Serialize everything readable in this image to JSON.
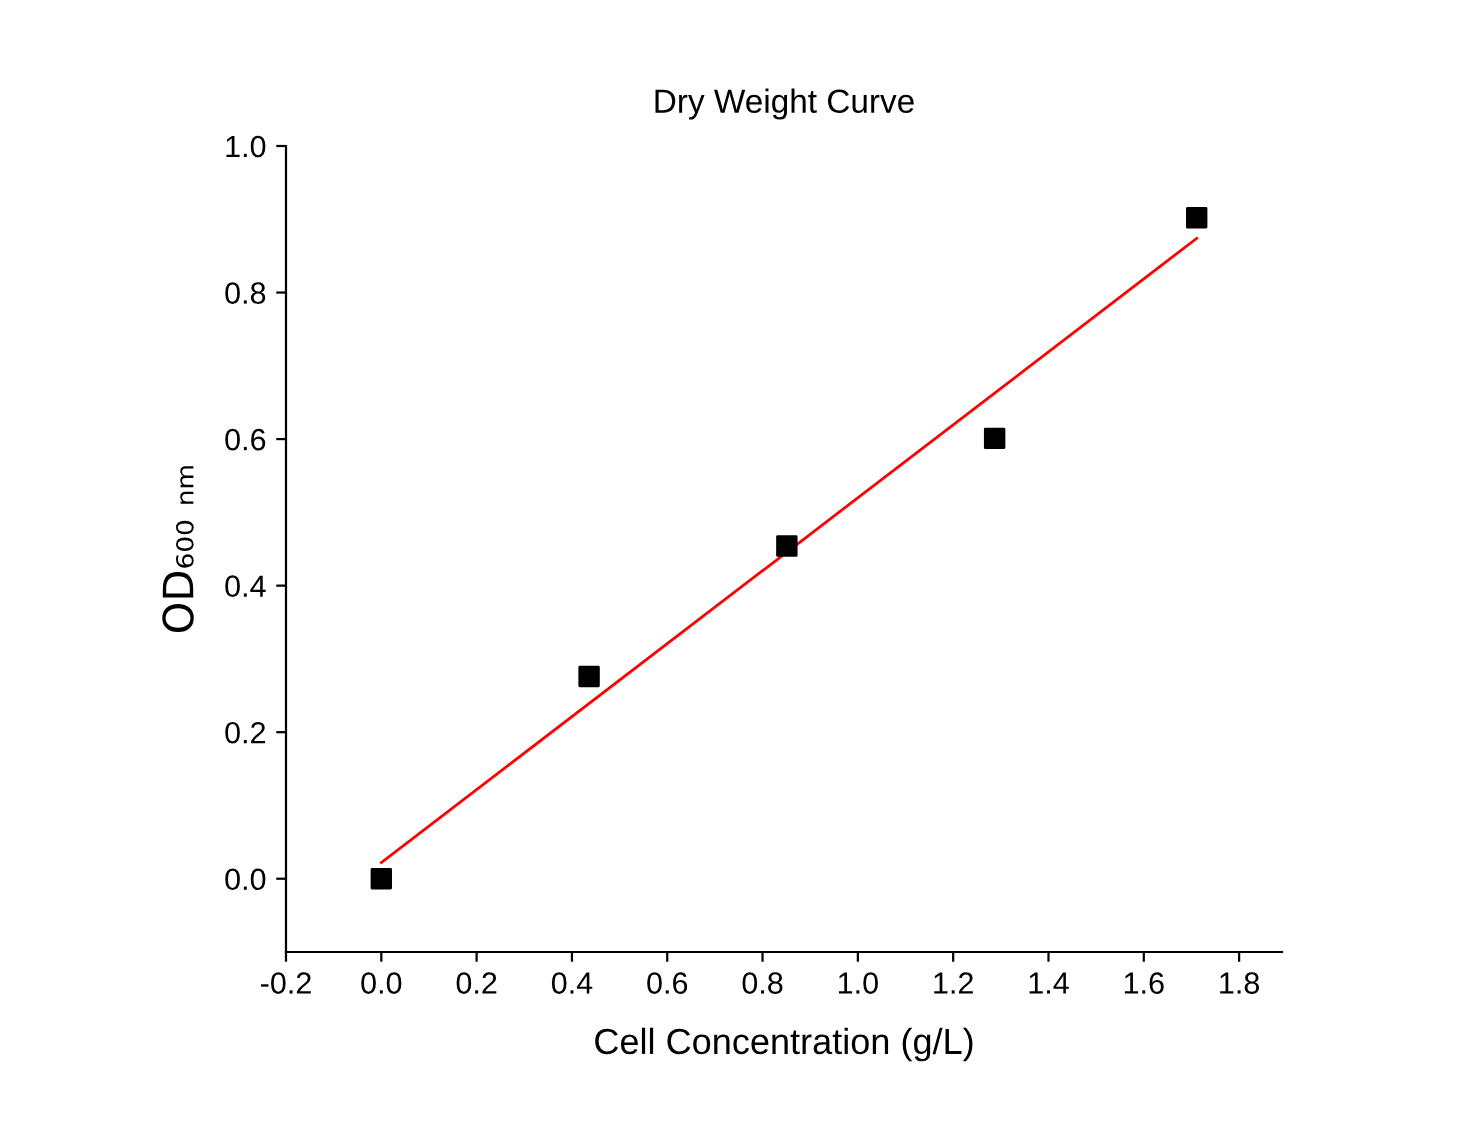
{
  "chart_data": {
    "type": "scatter",
    "title": "Dry Weight Curve",
    "xlabel": "Cell Concentration (g/L)",
    "ylabel": "OD₆₀₀ ₙₘ",
    "x": [
      0.0,
      0.436,
      0.851,
      1.287,
      1.711
    ],
    "series": [
      {
        "color": "#000000",
        "marker": "square",
        "values": [
          0.0,
          0.276,
          0.454,
          0.601,
          0.902
        ]
      },
      {
        "type": "line",
        "color": "#ff0000",
        "x": [
          0.0,
          1.711
        ],
        "values": [
          0.022,
          0.874
        ],
        "line_style": "solid",
        "marker": "none"
      }
    ],
    "xlim": [
      -0.2,
      1.89
    ],
    "ylim": [
      -0.1,
      1.0
    ],
    "xticks": [
      -0.2,
      {
        "value": 0,
        "label": "0.0"
      },
      0.2,
      0.4,
      0.6,
      0.8,
      {
        "value": 1,
        "label": "1.0"
      },
      1.2,
      1.4,
      1.6,
      1.8
    ],
    "yticks": [
      {
        "value": 0,
        "label": "0.0"
      },
      0.2,
      0.4,
      0.6,
      0.8,
      {
        "value": 1,
        "label": "1.0"
      }
    ],
    "grid": false
  }
}
